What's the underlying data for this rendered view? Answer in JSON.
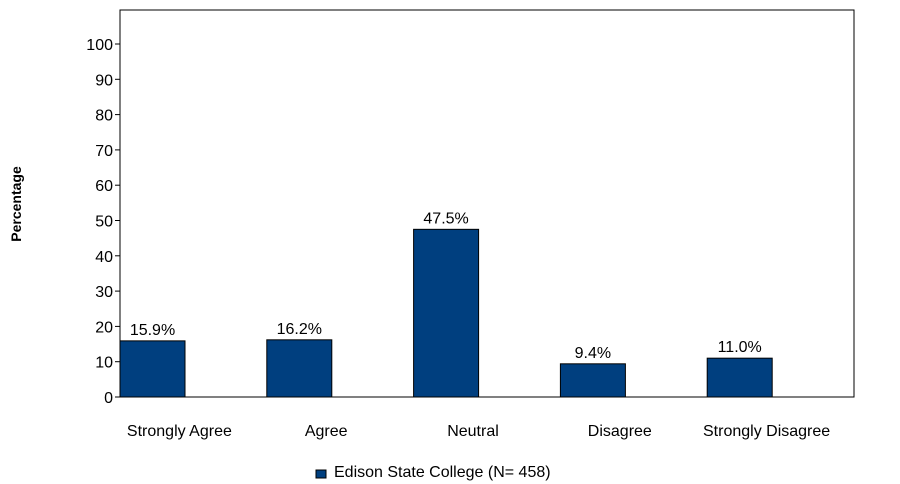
{
  "chart_data": {
    "type": "bar",
    "title": "",
    "xlabel": "",
    "ylabel": "Percentage",
    "ylim": [
      0,
      100
    ],
    "yticks": [
      0,
      10,
      20,
      30,
      40,
      50,
      60,
      70,
      80,
      90,
      100
    ],
    "grid": false,
    "legend_position": "bottom-center",
    "categories": [
      "Strongly Agree",
      "Agree",
      "Neutral",
      "Disagree",
      "Strongly Disagree"
    ],
    "series": [
      {
        "name": "Edison State College (N= 458)",
        "values": [
          15.9,
          16.2,
          47.5,
          9.4,
          11.0
        ],
        "labels": [
          "15.9%",
          "16.2%",
          "47.5%",
          "9.4%",
          "11.0%"
        ],
        "color": "#003f7f"
      }
    ]
  }
}
